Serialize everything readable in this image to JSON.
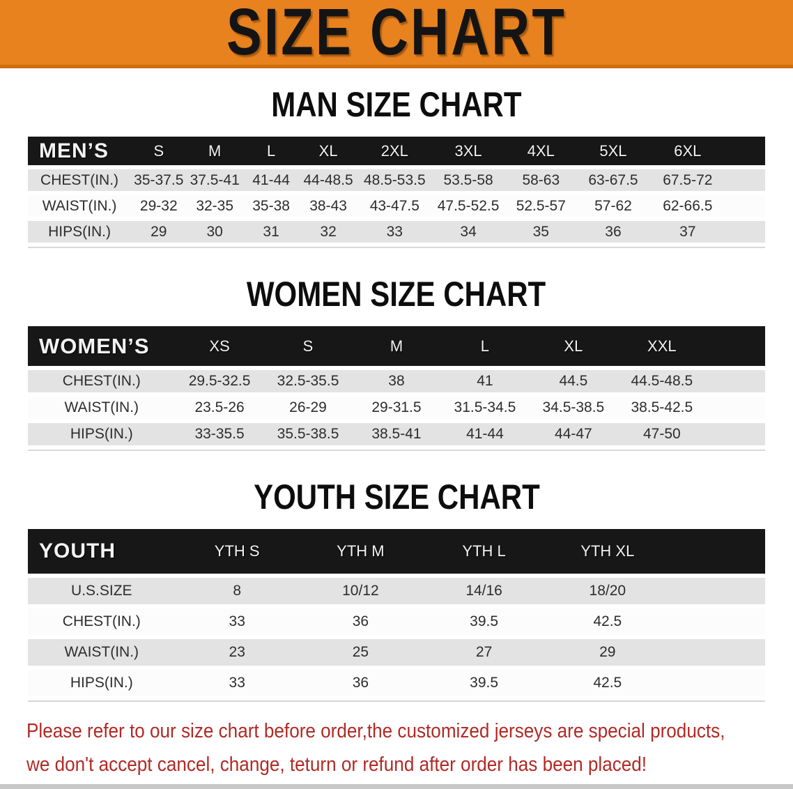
{
  "banner": {
    "title": "SIZE CHART"
  },
  "colors": {
    "c-orange": "#e8821e",
    "c-orange-edge": "#cf6d10",
    "c-band": "#171717",
    "c-row-gray": "#e3e3e3",
    "c-row-white": "#fcfcfc",
    "c-red": "#b12a25",
    "c-text": "#2d2d2d"
  },
  "sections": [
    {
      "heading": "MAN SIZE CHART",
      "table": {
        "filler": true,
        "header": [
          "MEN’S",
          "S",
          "M",
          "L",
          "XL",
          "2XL",
          "3XL",
          "4XL",
          "5XL",
          "6XL"
        ],
        "rows": [
          [
            "CHEST(IN.)",
            "35-37.5",
            "37.5-41",
            "41-44",
            "44-48.5",
            "48.5-53.5",
            "53.5-58",
            "58-63",
            "63-67.5",
            "67.5-72"
          ],
          [
            "WAIST(IN.)",
            "29-32",
            "32-35",
            "35-38",
            "38-43",
            "43-47.5",
            "47.5-52.5",
            "52.5-57",
            "57-62",
            "62-66.5"
          ],
          [
            "HIPS(IN.)",
            "29",
            "30",
            "31",
            "32",
            "33",
            "34",
            "35",
            "36",
            "37"
          ]
        ]
      }
    },
    {
      "heading": "WOMEN SIZE CHART",
      "table": {
        "filler": true,
        "header": [
          "WOMEN’S",
          "XS",
          "S",
          "M",
          "L",
          "XL",
          "XXL"
        ],
        "rows": [
          [
            "CHEST(IN.)",
            "29.5-32.5",
            "32.5-35.5",
            "38",
            "41",
            "44.5",
            "44.5-48.5"
          ],
          [
            "WAIST(IN.)",
            "23.5-26",
            "26-29",
            "29-31.5",
            "31.5-34.5",
            "34.5-38.5",
            "38.5-42.5"
          ],
          [
            "HIPS(IN.)",
            "33-35.5",
            "35.5-38.5",
            "38.5-41",
            "41-44",
            "44-47",
            "47-50"
          ]
        ]
      }
    },
    {
      "heading": "YOUTH SIZE CHART",
      "table": {
        "filler": true,
        "header": [
          "YOUTH",
          "YTH S",
          "YTH M",
          "YTH L",
          "YTH XL"
        ],
        "rows": [
          [
            "U.S.SIZE",
            "8",
            "10/12",
            "14/16",
            "18/20"
          ],
          [
            "CHEST(IN.)",
            "33",
            "36",
            "39.5",
            "42.5"
          ],
          [
            "WAIST(IN.)",
            "23",
            "25",
            "27",
            "29"
          ],
          [
            "HIPS(IN.)",
            "33",
            "36",
            "39.5",
            "42.5"
          ]
        ]
      }
    }
  ],
  "disclaimer": {
    "lines": [
      "Please refer to our size chart before order,the customized jerseys are special products,",
      "we don't accept cancel, change, teturn or refund after order has been placed!"
    ]
  }
}
